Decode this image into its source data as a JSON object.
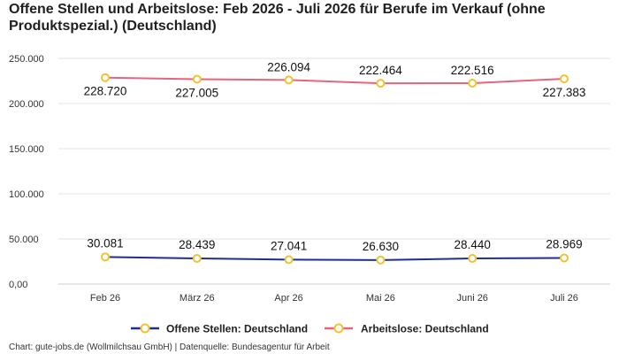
{
  "chart_data": {
    "type": "line",
    "title": "Offene Stellen und Arbeitslose: Feb 2026 - Juli 2026 für Berufe im Verkauf (ohne Produktspezial.) (Deutschland)",
    "categories": [
      "Feb 26",
      "März 26",
      "Apr 26",
      "Mai 26",
      "Juni 26",
      "Juli 26"
    ],
    "series": [
      {
        "name": "Offene Stellen: Deutschland",
        "values": [
          30081,
          28439,
          27041,
          26630,
          28440,
          28969
        ],
        "labels": [
          "30.081",
          "28.439",
          "27.041",
          "26.630",
          "28.440",
          "28.969"
        ],
        "color": "#1f2f8f"
      },
      {
        "name": "Arbeitslose: Deutschland",
        "values": [
          228720,
          227005,
          226094,
          222464,
          222516,
          227383
        ],
        "labels": [
          "228.720",
          "227.005",
          "226.094",
          "222.464",
          "222.516",
          "227.383"
        ],
        "color": "#e8647c"
      }
    ],
    "marker_fill": "#ffffff",
    "marker_stroke": "#f2c230",
    "ylim": [
      0,
      250000
    ],
    "yticks": [
      0,
      50000,
      100000,
      150000,
      200000,
      250000
    ],
    "ytick_labels": [
      "0,00",
      "50.000",
      "100.000",
      "150.000",
      "200.000",
      "250.000"
    ],
    "grid": true,
    "legend": "bottom"
  },
  "footer": "Chart: gute-jobs.de (Wollmilchsau GmbH) | Datenquelle: Bundesagentur für Arbeit"
}
